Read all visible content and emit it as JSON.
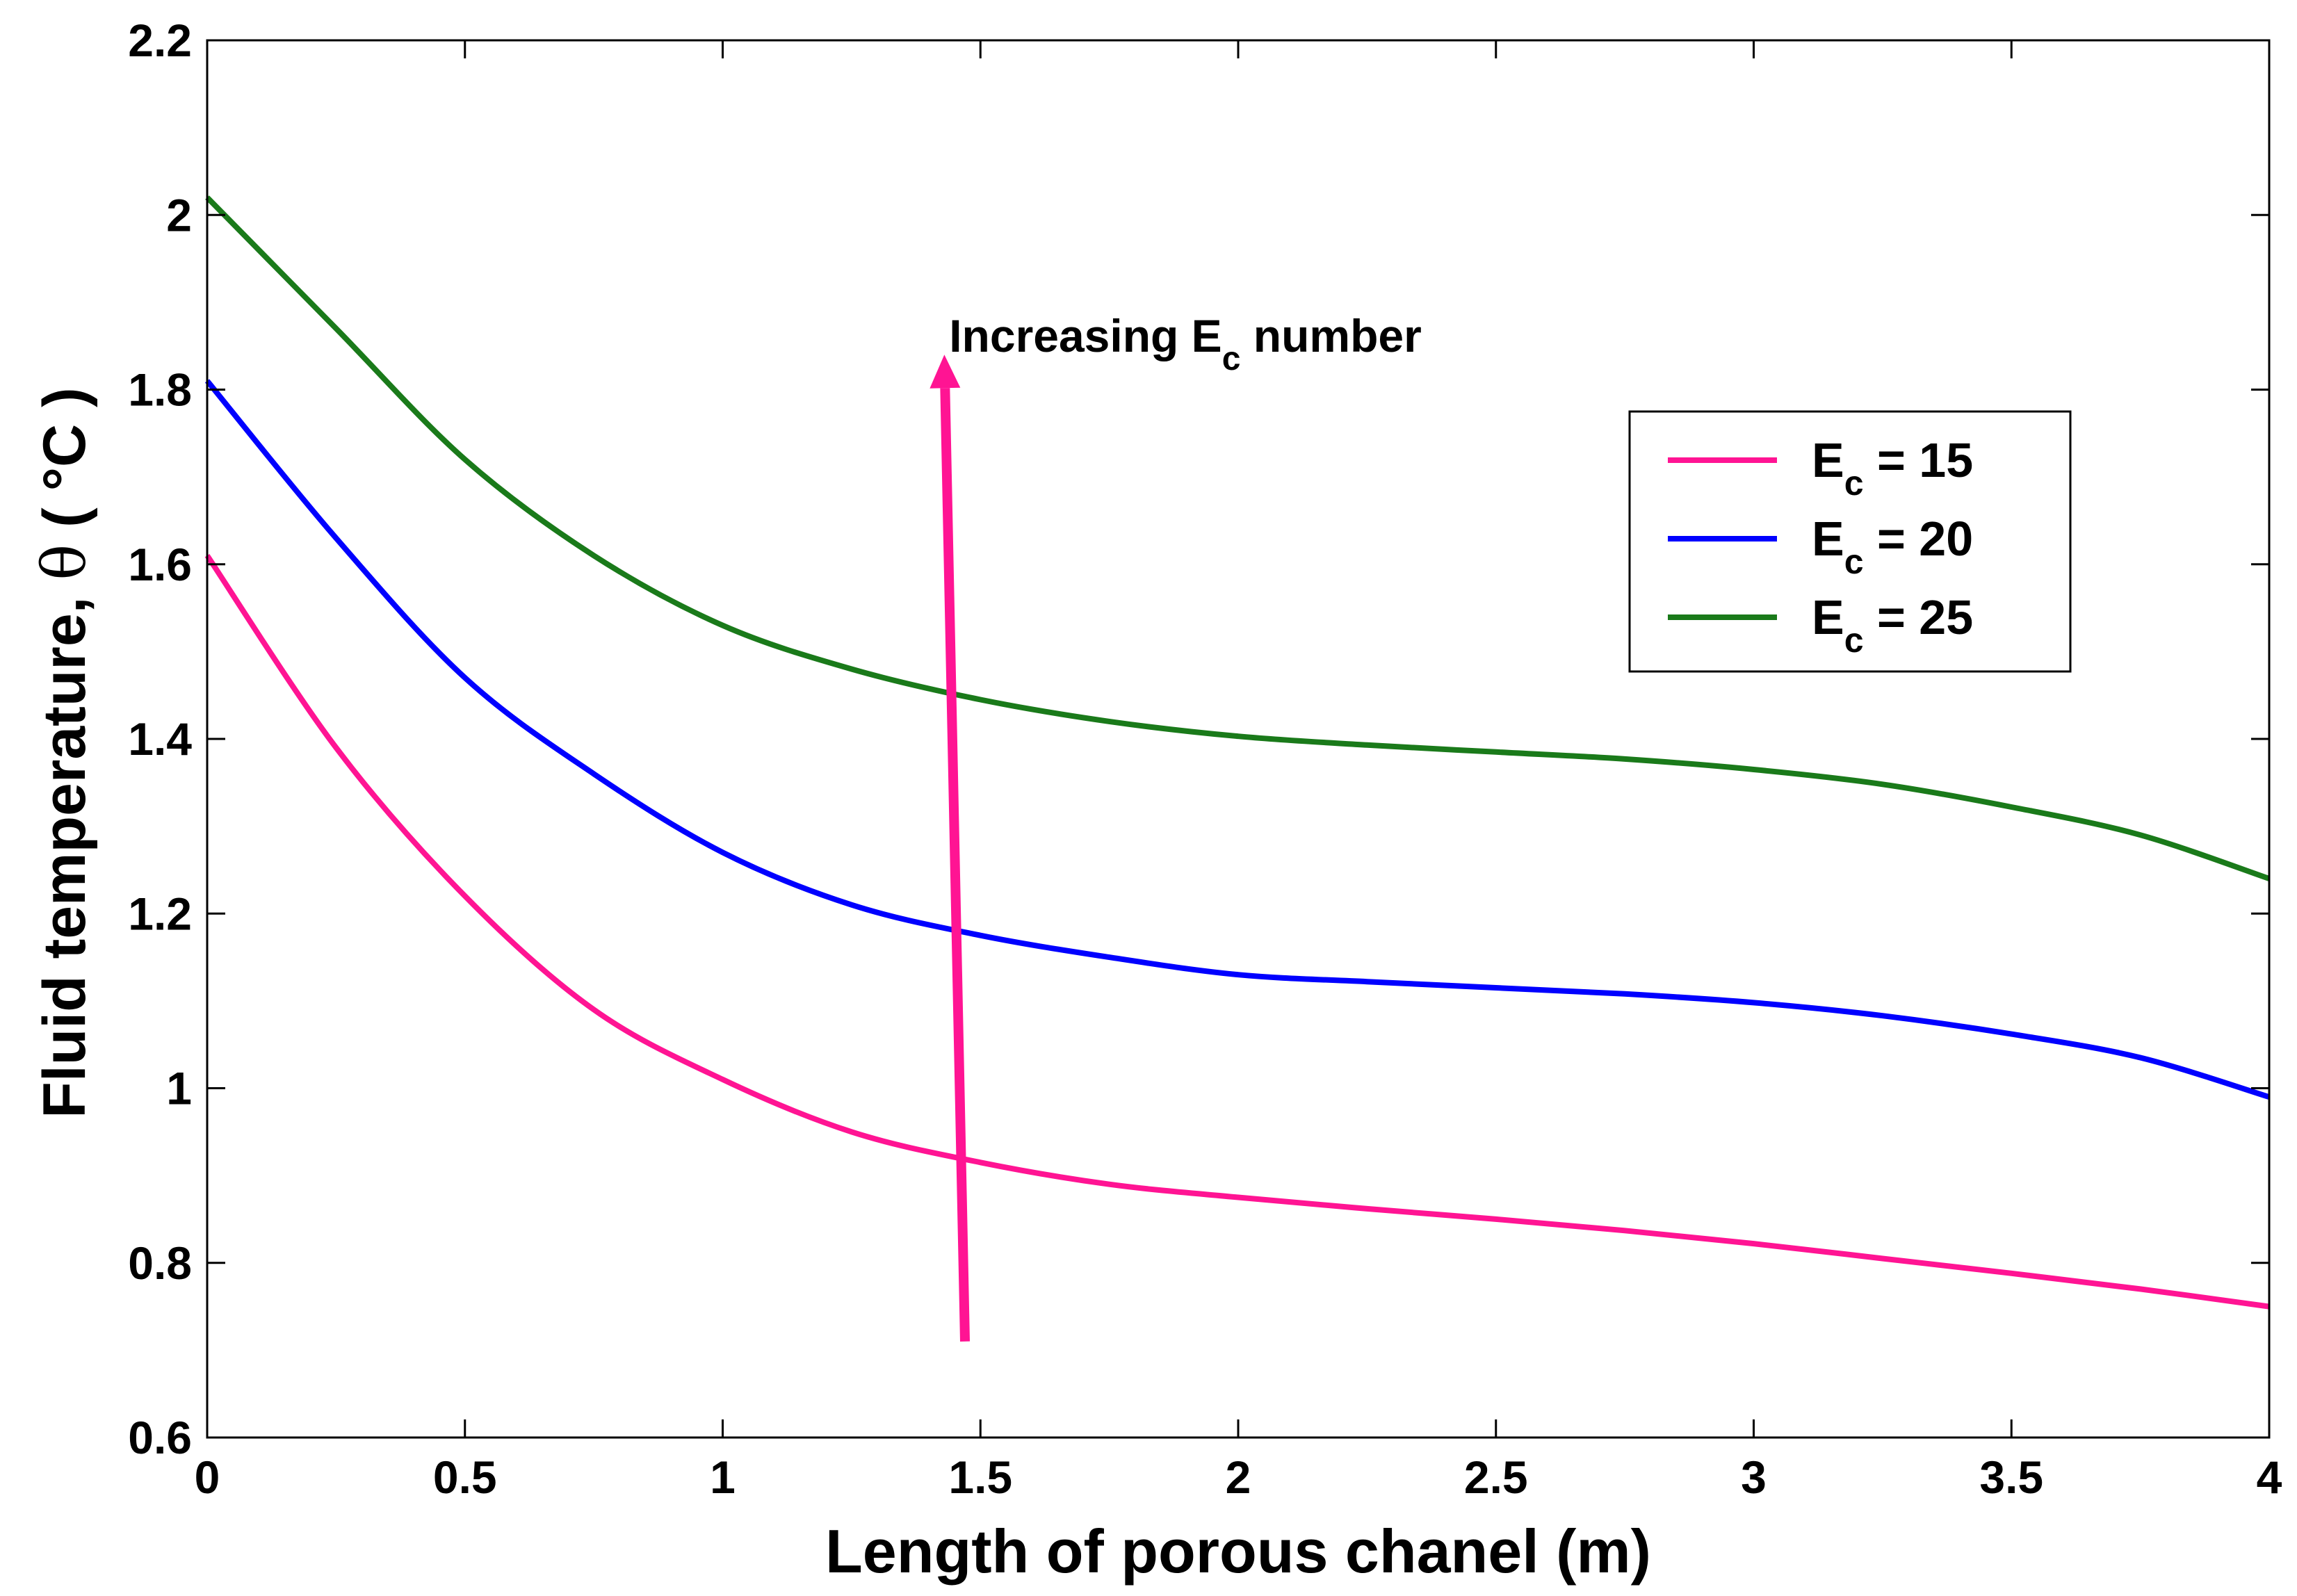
{
  "chart_data": {
    "type": "line",
    "title": "",
    "xlabel": "Length of porous chanel (m)",
    "ylabel_main": "Fluid temperature, ",
    "ylabel_symbol": "θ",
    "ylabel_unit": " ( °C )",
    "xlim": [
      0,
      4
    ],
    "ylim": [
      0.6,
      2.2
    ],
    "x_ticks": [
      0,
      0.5,
      1,
      1.5,
      2,
      2.5,
      3,
      3.5,
      4
    ],
    "x_tick_labels": [
      "0",
      "0.5",
      "1",
      "1.5",
      "2",
      "2.5",
      "3",
      "3.5",
      "4"
    ],
    "y_ticks": [
      0.6,
      0.8,
      1.0,
      1.2,
      1.4,
      1.6,
      1.8,
      2.0,
      2.2
    ],
    "y_tick_labels": [
      "0.6",
      "0.8",
      "1",
      "1.2",
      "1.4",
      "1.6",
      "1.8",
      "2",
      "2.2"
    ],
    "grid": false,
    "legend_position": "top-right",
    "x": [
      0,
      0.25,
      0.5,
      0.75,
      1.0,
      1.25,
      1.5,
      1.75,
      2.0,
      2.25,
      2.5,
      2.75,
      3.0,
      3.25,
      3.5,
      3.75,
      4.0
    ],
    "series": [
      {
        "legend_prefix": "E",
        "legend_sub": "c",
        "legend_suffix": " = 15",
        "color": "#ff1493",
        "values": [
          1.61,
          1.39,
          1.22,
          1.09,
          1.01,
          0.95,
          0.915,
          0.89,
          0.875,
          0.862,
          0.85,
          0.837,
          0.822,
          0.805,
          0.788,
          0.77,
          0.75
        ]
      },
      {
        "legend_prefix": "E",
        "legend_sub": "c",
        "legend_suffix": " = 20",
        "color": "#0000ff",
        "values": [
          1.81,
          1.63,
          1.47,
          1.36,
          1.27,
          1.21,
          1.175,
          1.15,
          1.13,
          1.122,
          1.115,
          1.108,
          1.098,
          1.083,
          1.062,
          1.035,
          0.99
        ]
      },
      {
        "legend_prefix": "E",
        "legend_sub": "c",
        "legend_suffix": " = 25",
        "color": "#1a7a1a",
        "values": [
          2.02,
          1.87,
          1.72,
          1.61,
          1.53,
          1.48,
          1.445,
          1.42,
          1.403,
          1.393,
          1.385,
          1.377,
          1.365,
          1.348,
          1.322,
          1.29,
          1.24
        ]
      }
    ],
    "annotation": {
      "text_prefix": "Increasing E",
      "text_sub": "c",
      "text_suffix": " number",
      "arrow_color": "#ff1493",
      "arrow_from": [
        1.47,
        0.71
      ],
      "arrow_to": [
        1.43,
        1.84
      ]
    }
  }
}
